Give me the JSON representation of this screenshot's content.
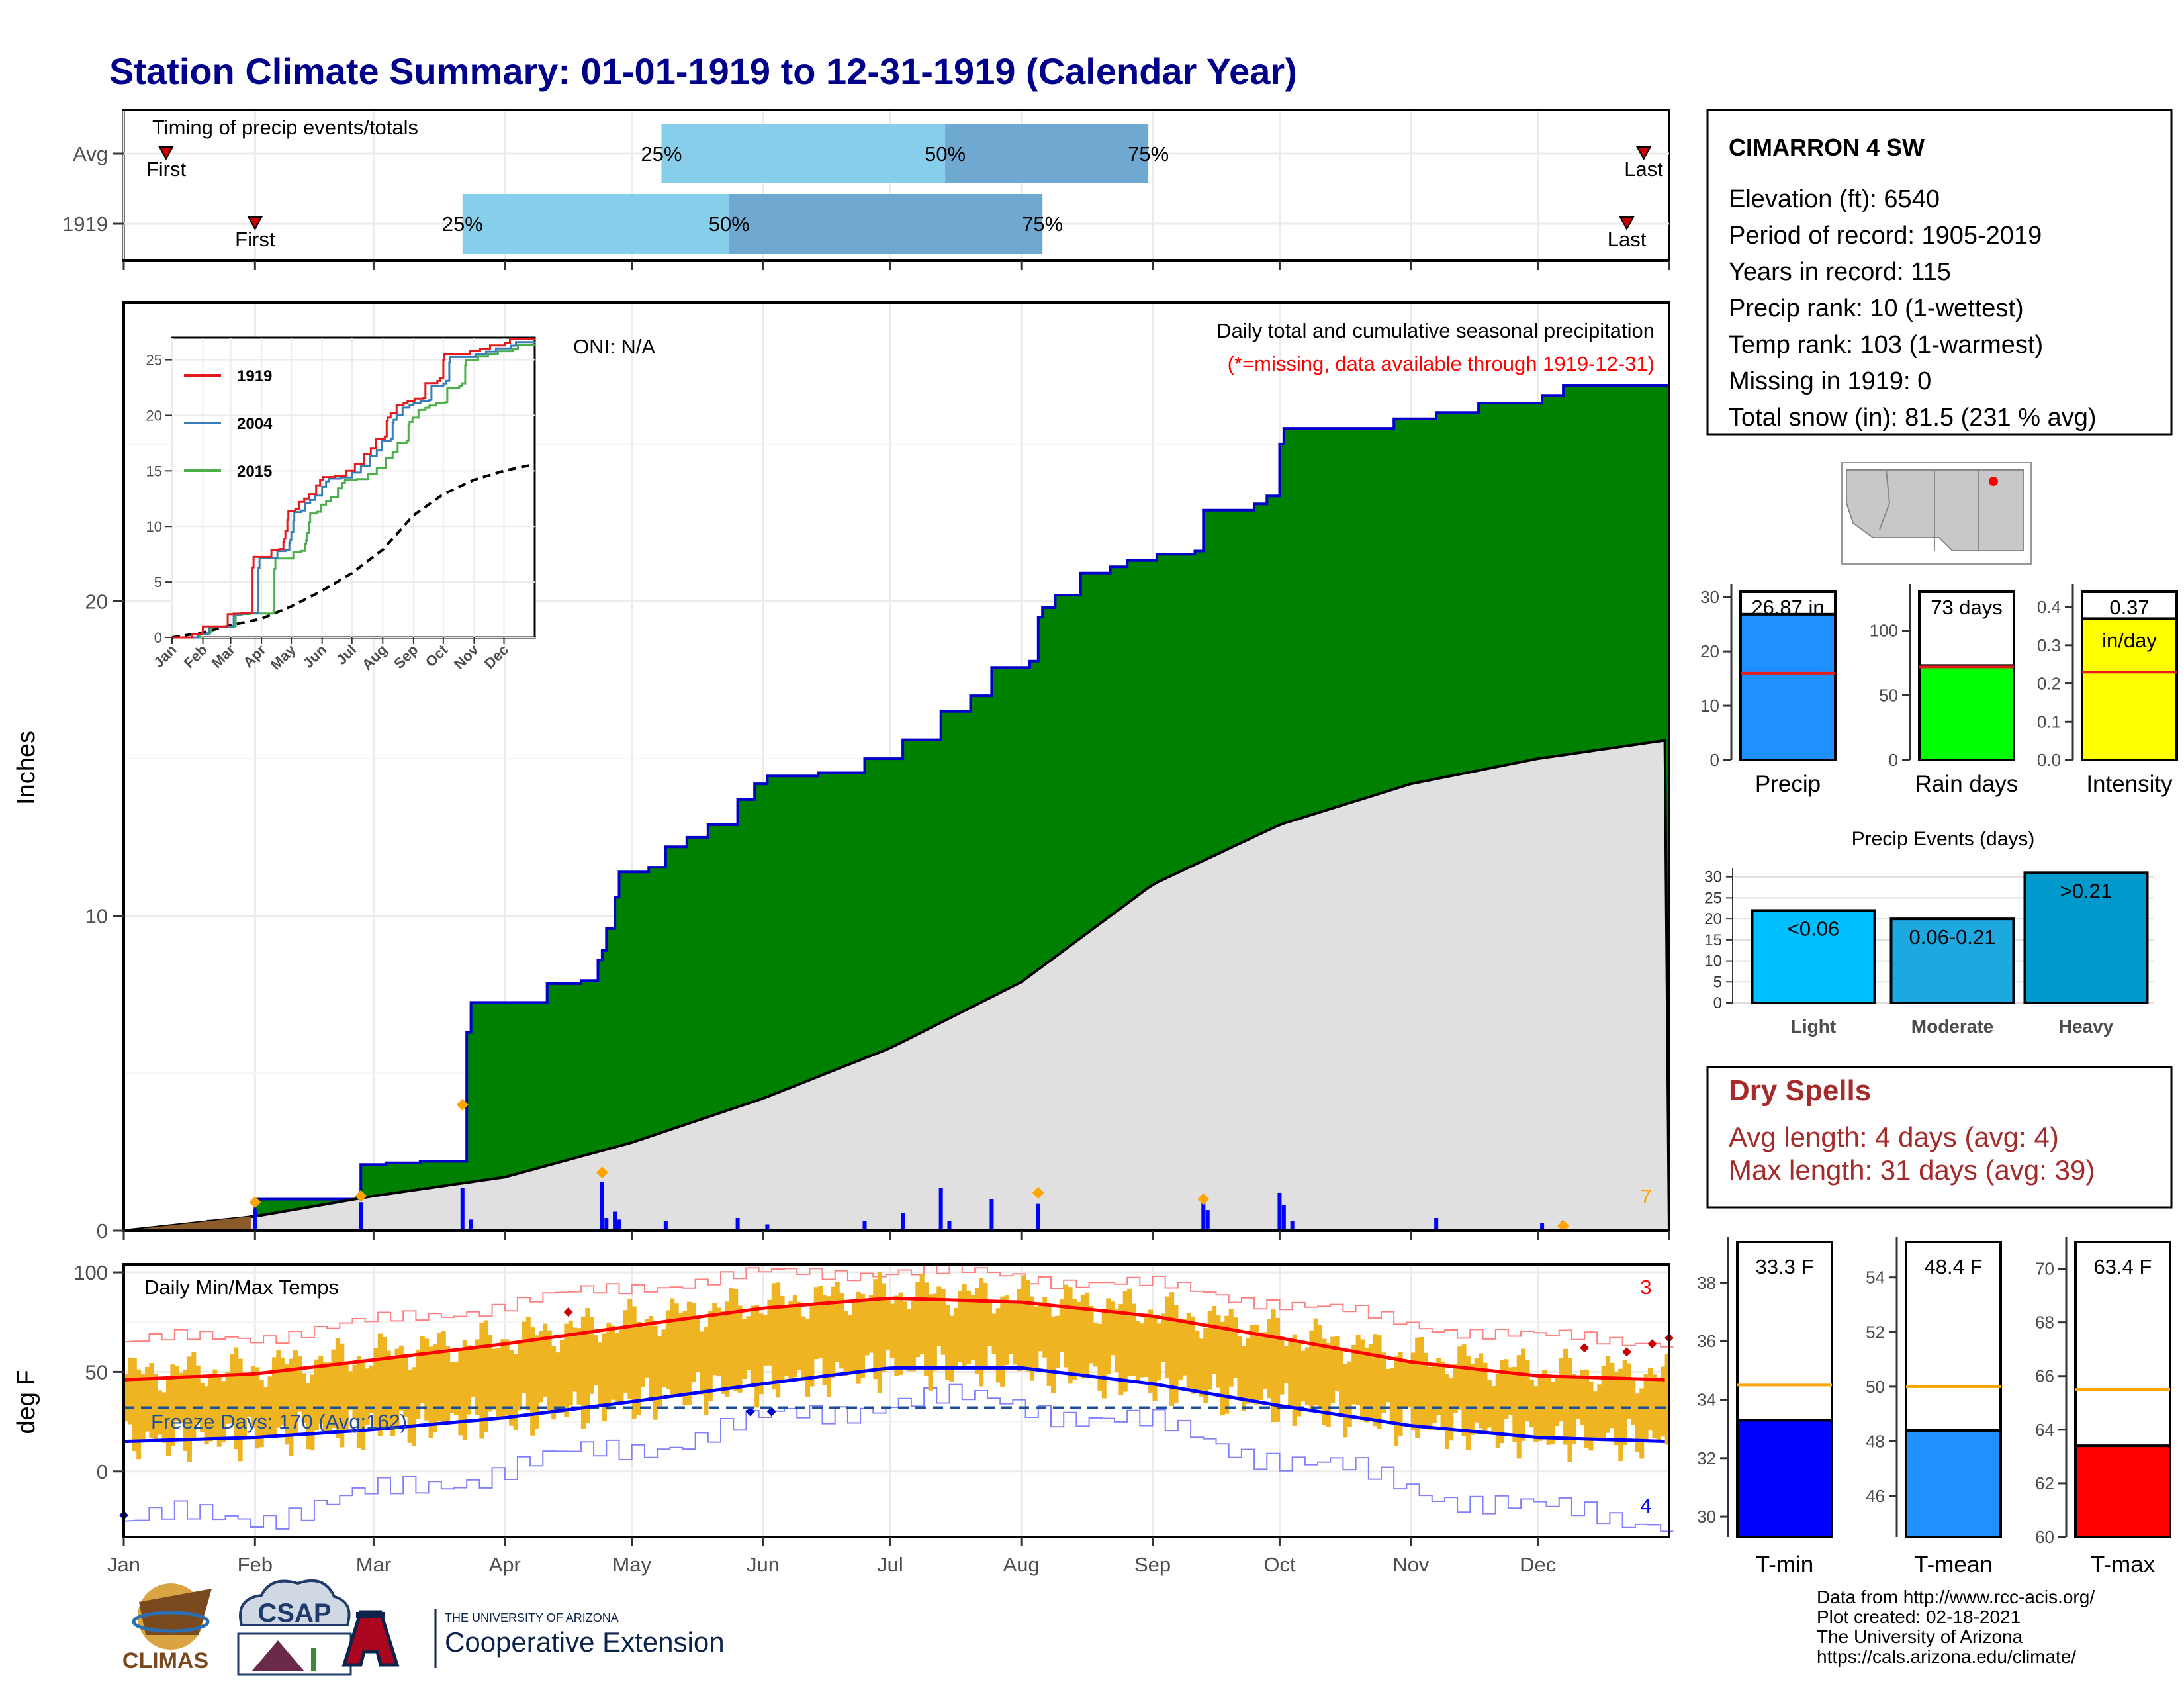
{
  "title": "Station Climate Summary: 01-01-1919 to 12-31-1919 (Calendar Year)",
  "timing": {
    "label": "Timing of precip events/totals",
    "rows": [
      {
        "name": "Avg",
        "first_day": 10,
        "q25_day": 127,
        "q50_day": 194,
        "q75_day": 242,
        "last_day": 359
      },
      {
        "name": "1919",
        "first_day": 31,
        "q25_day": 80,
        "q50_day": 143,
        "q75_day": 217,
        "last_day": 355
      }
    ],
    "q25_label": "25%",
    "q50_label": "50%",
    "q75_label": "75%",
    "first_label": "First",
    "last_label": "Last"
  },
  "precip_panel": {
    "title": "Daily total and cumulative seasonal precipitation",
    "subtitle": "(*=missing, data available through 1919-12-31)",
    "oni_label": "ONI: N/A",
    "ylabel": "Inches",
    "yticks": [
      0,
      10,
      20
    ],
    "ylim": [
      0,
      29.5
    ],
    "corner_count": "7",
    "colors": {
      "cumulative": "#008000",
      "avg": "#e0e0e0",
      "daily": "#0000ff",
      "outline": "#0000cd",
      "snow": "#ffa500"
    }
  },
  "temp_panel": {
    "title": "Daily Min/Max Temps",
    "ylabel": "deg F",
    "yticks": [
      0,
      50,
      100
    ],
    "ylim": [
      -33,
      104
    ],
    "freeze_label": "Freeze Days: 170 (Avg:162)",
    "freeze_line": 32,
    "record_high_count": "3",
    "record_low_count": "4",
    "colors": {
      "bars": "#eeb422",
      "max": "#ff0000",
      "min": "#0000ff"
    }
  },
  "months": [
    "Jan",
    "Feb",
    "Mar",
    "Apr",
    "May",
    "Jun",
    "Jul",
    "Aug",
    "Sep",
    "Oct",
    "Nov",
    "Dec"
  ],
  "inset": {
    "yticks": [
      0,
      5,
      10,
      15,
      20,
      25
    ],
    "months": [
      "Jan",
      "Feb",
      "Mar",
      "Apr",
      "May",
      "Jun",
      "Jul",
      "Aug",
      "Sep",
      "Oct",
      "Nov",
      "Dec"
    ],
    "legend": [
      {
        "name": "1919",
        "color": "#e41a1c"
      },
      {
        "name": "2004",
        "color": "#377eb8"
      },
      {
        "name": "2015",
        "color": "#4daf4a"
      }
    ]
  },
  "station": {
    "name": "CIMARRON 4 SW",
    "lines": [
      "Elevation (ft): 6540",
      "Period of record: 1905-2019",
      "Years in record: 115",
      "Precip rank: 10 (1-wettest)",
      "Temp rank: 103 (1-warmest)",
      "Missing in 1919: 0",
      "Total snow (in): 81.5 (231 % avg)"
    ]
  },
  "summary_bars": [
    {
      "name": "Precip",
      "value": 26.87,
      "label": "26.87 in",
      "avg": 16,
      "ylim": [
        0,
        31
      ],
      "yticks": [
        0,
        10,
        20,
        30
      ],
      "color": "#1e90ff"
    },
    {
      "name": "Rain days",
      "value": 73,
      "label": "73 days",
      "avg": 72,
      "ylim": [
        0,
        130
      ],
      "yticks": [
        0,
        50,
        100
      ],
      "color": "#00ff00"
    },
    {
      "name": "Intensity",
      "value": 0.37,
      "label": "0.37",
      "unit": "in/day",
      "avg": 0.23,
      "ylim": [
        0,
        0.44
      ],
      "yticks": [
        0.0,
        0.1,
        0.2,
        0.3,
        0.4
      ],
      "color": "#ffff00"
    }
  ],
  "precip_events": {
    "title": "Precip Events (days)",
    "yticks": [
      0,
      5,
      10,
      15,
      20,
      25,
      30
    ],
    "ylim": [
      0,
      32
    ],
    "categories": [
      {
        "name": "Light",
        "label": "<0.06",
        "value": 22,
        "color": "#00bfff"
      },
      {
        "name": "Moderate",
        "label": "0.06-0.21",
        "value": 20,
        "color": "#1ea8e0"
      },
      {
        "name": "Heavy",
        "label": ">0.21",
        "value": 31,
        "color": "#0099cc"
      }
    ]
  },
  "dry_spells": {
    "title": "Dry Spells",
    "avg_line": "Avg length: 4 days (avg: 4)",
    "max_line": "Max length: 31 days (avg: 39)"
  },
  "temp_bars": [
    {
      "name": "T-min",
      "value": 33.3,
      "label": "33.3 F",
      "avg": 34.5,
      "ylim": [
        29.3,
        39.4
      ],
      "yticks": [
        30,
        32,
        34,
        36,
        38
      ],
      "color": "#0000ff"
    },
    {
      "name": "T-mean",
      "value": 48.4,
      "label": "48.4 F",
      "avg": 50.0,
      "ylim": [
        44.5,
        55.3
      ],
      "yticks": [
        46,
        48,
        50,
        52,
        54
      ],
      "color": "#1e90ff"
    },
    {
      "name": "T-max",
      "value": 63.4,
      "label": "63.4 F",
      "avg": 65.5,
      "ylim": [
        60,
        71
      ],
      "yticks": [
        60,
        62,
        64,
        66,
        68,
        70
      ],
      "color": "#ff0000"
    }
  ],
  "footer": {
    "lines": [
      "Data from http://www.rcc-acis.org/",
      "Plot created: 02-18-2021",
      "The University of Arizona",
      "https://cals.arizona.edu/climate/"
    ],
    "logos": {
      "climas": "CLIMAS",
      "csap": "CSAP",
      "ua_top": "THE UNIVERSITY OF ARIZONA",
      "ua_bottom": "Cooperative Extension"
    }
  },
  "chart_data": {
    "type": "area",
    "title": "Daily total and cumulative seasonal precipitation",
    "ylabel": "Inches",
    "ylim": [
      0,
      29.5
    ],
    "cumulative_steps": [
      [
        0,
        0.0
      ],
      [
        20,
        0.3
      ],
      [
        30,
        0.45
      ],
      [
        31,
        1.0
      ],
      [
        55,
        1.05
      ],
      [
        56,
        2.1
      ],
      [
        62,
        2.15
      ],
      [
        70,
        2.2
      ],
      [
        80,
        2.2
      ],
      [
        81,
        6.3
      ],
      [
        82,
        7.25
      ],
      [
        100,
        7.85
      ],
      [
        108,
        7.95
      ],
      [
        112,
        8.6
      ],
      [
        113,
        8.9
      ],
      [
        114,
        9.6
      ],
      [
        116,
        10.6
      ],
      [
        117,
        11.4
      ],
      [
        124,
        11.55
      ],
      [
        128,
        12.2
      ],
      [
        133,
        12.5
      ],
      [
        138,
        12.9
      ],
      [
        145,
        13.7
      ],
      [
        149,
        14.2
      ],
      [
        152,
        14.45
      ],
      [
        164,
        14.55
      ],
      [
        175,
        15.0
      ],
      [
        184,
        15.6
      ],
      [
        193,
        16.5
      ],
      [
        200,
        17.0
      ],
      [
        205,
        17.9
      ],
      [
        214,
        18.1
      ],
      [
        216,
        19.5
      ],
      [
        217,
        19.8
      ],
      [
        220,
        20.2
      ],
      [
        226,
        20.9
      ],
      [
        233,
        21.1
      ],
      [
        237,
        21.3
      ],
      [
        244,
        21.5
      ],
      [
        253,
        21.6
      ],
      [
        255,
        22.9
      ],
      [
        267,
        23.1
      ],
      [
        270,
        23.35
      ],
      [
        273,
        25.0
      ],
      [
        274,
        25.5
      ],
      [
        300,
        25.8
      ],
      [
        310,
        26.0
      ],
      [
        320,
        26.3
      ],
      [
        335,
        26.55
      ],
      [
        340,
        26.87
      ],
      [
        365,
        26.87
      ]
    ],
    "average_cumulative": [
      [
        0,
        0.0
      ],
      [
        31,
        0.45
      ],
      [
        59,
        1.1
      ],
      [
        90,
        1.7
      ],
      [
        120,
        2.8
      ],
      [
        151,
        4.2
      ],
      [
        181,
        5.8
      ],
      [
        212,
        7.9
      ],
      [
        243,
        11.0
      ],
      [
        273,
        12.9
      ],
      [
        304,
        14.2
      ],
      [
        334,
        15.0
      ],
      [
        365,
        15.6
      ]
    ],
    "daily_precip": [
      [
        31,
        0.65
      ],
      [
        56,
        0.9
      ],
      [
        80,
        1.35
      ],
      [
        82,
        0.35
      ],
      [
        113,
        1.55
      ],
      [
        114,
        0.4
      ],
      [
        116,
        0.6
      ],
      [
        117,
        0.35
      ],
      [
        128,
        0.3
      ],
      [
        145,
        0.4
      ],
      [
        152,
        0.2
      ],
      [
        175,
        0.3
      ],
      [
        184,
        0.55
      ],
      [
        193,
        1.35
      ],
      [
        195,
        0.3
      ],
      [
        205,
        1.0
      ],
      [
        216,
        0.85
      ],
      [
        255,
        0.9
      ],
      [
        256,
        0.65
      ],
      [
        273,
        1.2
      ],
      [
        274,
        0.8
      ],
      [
        276,
        0.3
      ],
      [
        310,
        0.4
      ],
      [
        335,
        0.25
      ],
      [
        340,
        0.3
      ]
    ],
    "snow_markers": [
      [
        31,
        0.9
      ],
      [
        56,
        1.1
      ],
      [
        80,
        4.0
      ],
      [
        113,
        1.85
      ],
      [
        216,
        1.2
      ],
      [
        255,
        1.0
      ],
      [
        340,
        0.15
      ]
    ],
    "temperature": {
      "title": "Daily Min/Max Temps",
      "ylabel": "deg F",
      "ylim": [
        -33,
        104
      ],
      "avg_max": [
        [
          0,
          46
        ],
        [
          31,
          49
        ],
        [
          59,
          56
        ],
        [
          90,
          64
        ],
        [
          120,
          73
        ],
        [
          151,
          82
        ],
        [
          181,
          87
        ],
        [
          212,
          85
        ],
        [
          243,
          78
        ],
        [
          273,
          67
        ],
        [
          304,
          55
        ],
        [
          334,
          48
        ],
        [
          365,
          46
        ]
      ],
      "avg_min": [
        [
          0,
          15
        ],
        [
          31,
          17
        ],
        [
          59,
          21
        ],
        [
          90,
          27
        ],
        [
          120,
          35
        ],
        [
          151,
          44
        ],
        [
          181,
          52
        ],
        [
          212,
          52
        ],
        [
          243,
          44
        ],
        [
          273,
          33
        ],
        [
          304,
          23
        ],
        [
          334,
          17
        ],
        [
          365,
          15
        ]
      ],
      "record_max": [
        [
          0,
          65
        ],
        [
          31,
          68
        ],
        [
          59,
          75
        ],
        [
          90,
          84
        ],
        [
          120,
          93
        ],
        [
          151,
          99
        ],
        [
          181,
          101
        ],
        [
          212,
          98
        ],
        [
          243,
          93
        ],
        [
          273,
          85
        ],
        [
          304,
          74
        ],
        [
          334,
          67
        ],
        [
          365,
          66
        ]
      ],
      "record_min": [
        [
          0,
          -25
        ],
        [
          31,
          -22
        ],
        [
          59,
          -12
        ],
        [
          90,
          2
        ],
        [
          120,
          12
        ],
        [
          151,
          25
        ],
        [
          181,
          36
        ],
        [
          212,
          34
        ],
        [
          243,
          22
        ],
        [
          273,
          7
        ],
        [
          304,
          -8
        ],
        [
          334,
          -20
        ],
        [
          365,
          -24
        ]
      ],
      "freeze_days": 170,
      "freeze_days_avg": 162
    }
  }
}
